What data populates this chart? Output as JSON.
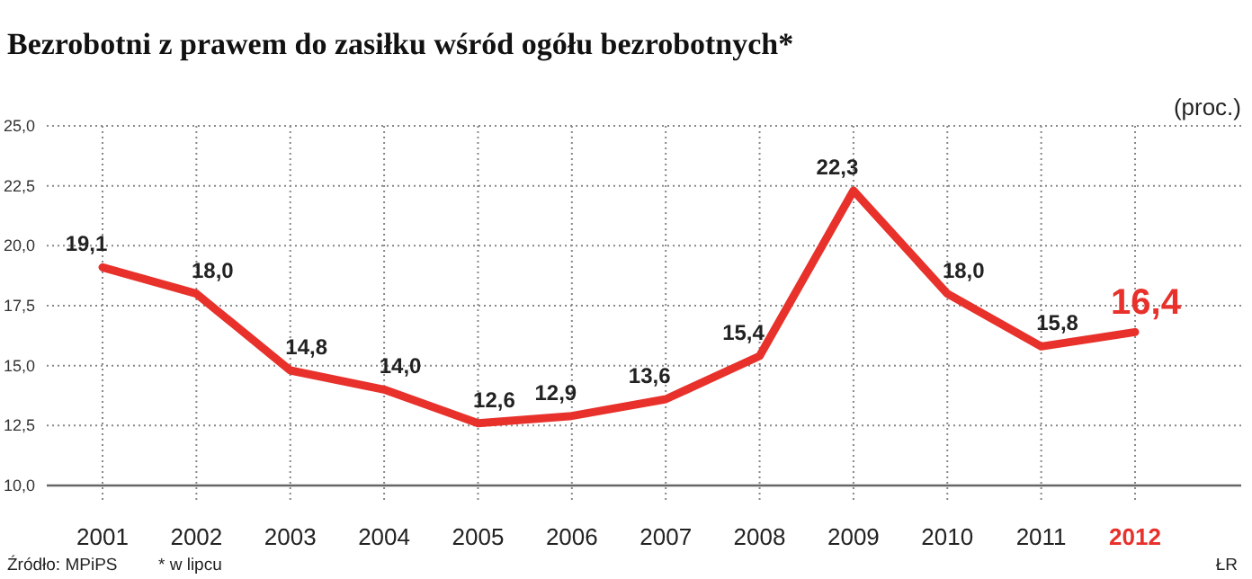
{
  "chart_data": {
    "type": "line",
    "title": "Bezrobotni z prawem do zasiłku wśród ogółu bezrobotnych*",
    "ylabel": "(proc.)",
    "categories": [
      "2001",
      "2002",
      "2003",
      "2004",
      "2005",
      "2006",
      "2007",
      "2008",
      "2009",
      "2010",
      "2011",
      "2012"
    ],
    "series": [
      {
        "color": "#e8312b",
        "values": [
          19.1,
          18.0,
          14.8,
          14.0,
          12.6,
          12.9,
          13.6,
          15.4,
          22.3,
          18.0,
          15.8,
          16.4
        ],
        "value_labels": [
          "19,1",
          "18,0",
          "14,8",
          "14,0",
          "12,6",
          "12,9",
          "13,6",
          "15,4",
          "22,3",
          "18,0",
          "15,8",
          "16,4"
        ]
      }
    ],
    "ylim": [
      10,
      25
    ],
    "yticks": [
      {
        "value": 10,
        "label": "10,0"
      },
      {
        "value": 12.5,
        "label": "12,5"
      },
      {
        "value": 15,
        "label": "15,0"
      },
      {
        "value": 17.5,
        "label": "17,5"
      },
      {
        "value": 20,
        "label": "20,0"
      },
      {
        "value": 22.5,
        "label": "22,5"
      },
      {
        "value": 25,
        "label": "25,0"
      }
    ],
    "grid": true,
    "marker": "none",
    "line_style": "solid",
    "annotations": [
      "Źródło: MPiPS",
      "* w lipcu",
      "ŁR"
    ]
  }
}
